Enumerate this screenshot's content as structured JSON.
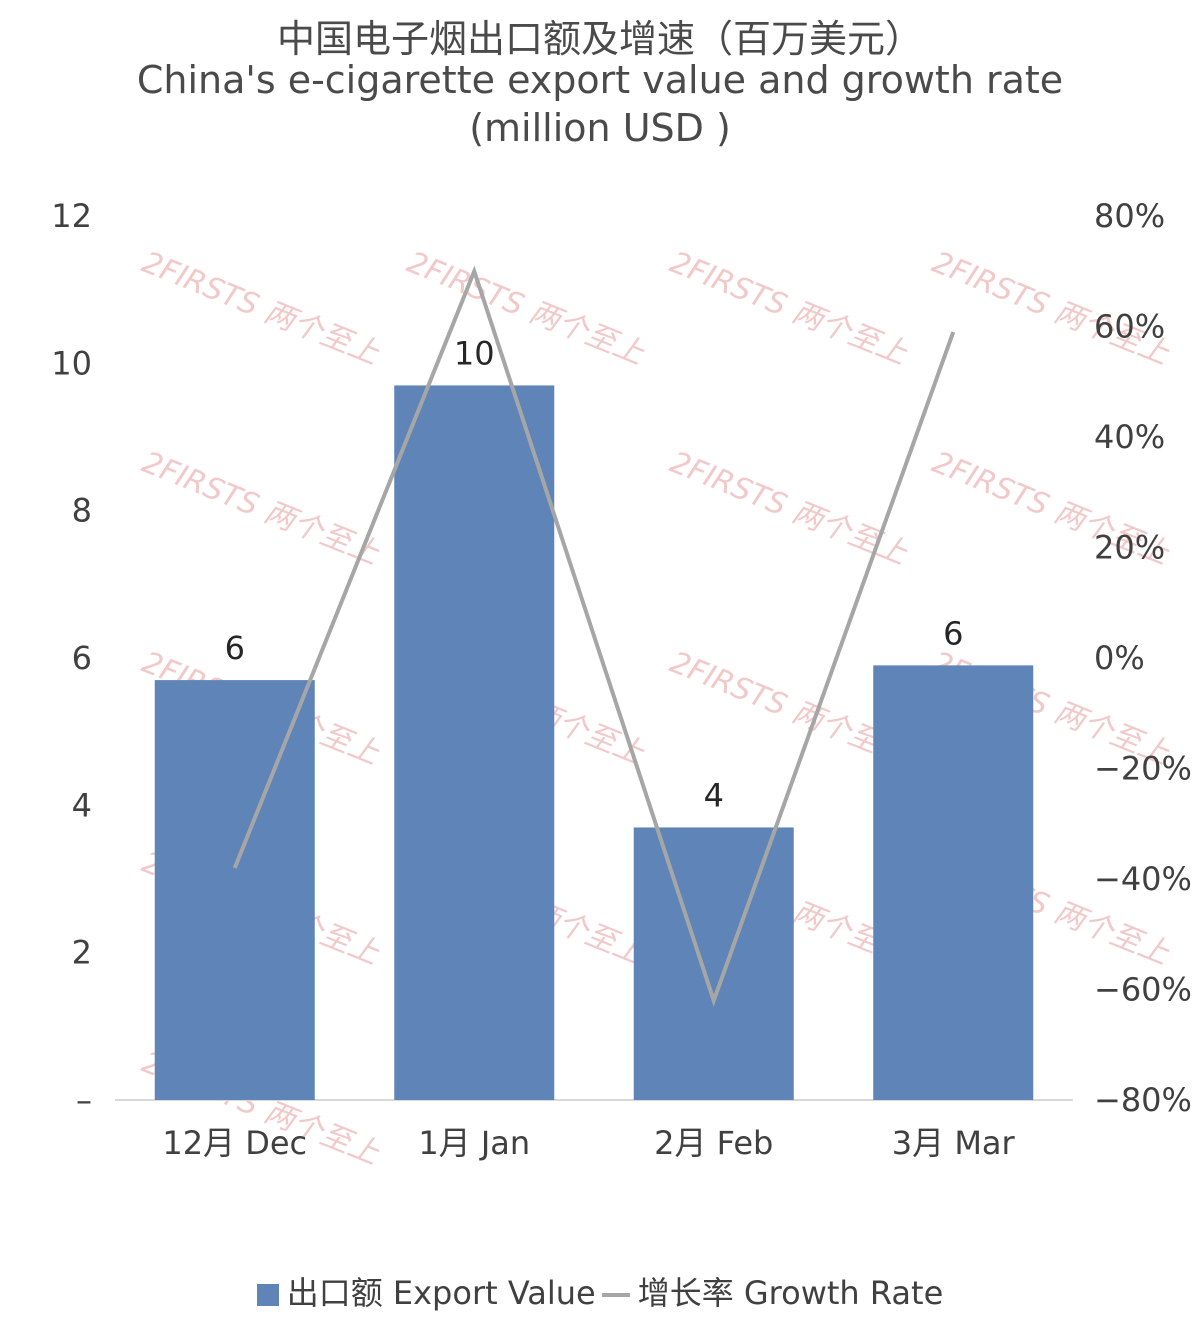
{
  "chart_data": {
    "type": "bar+line",
    "title_cn": "中国电子烟出口额及增速（百万美元）",
    "title_en": "China's e-cigarette export value and growth rate",
    "title_unit": "(million USD )",
    "categories": [
      "12月 Dec",
      "1月 Jan",
      "2月 Feb",
      "3月 Mar"
    ],
    "series": [
      {
        "name": "出口额 Export Value",
        "type": "bar",
        "axis": "left",
        "color": "#5f84b7",
        "values": [
          5.7,
          9.7,
          3.7,
          5.9
        ],
        "data_labels": [
          "6",
          "10",
          "4",
          "6"
        ]
      },
      {
        "name": "增长率 Growth Rate",
        "type": "line",
        "axis": "right",
        "color": "#a6a6a6",
        "values": [
          -0.38,
          0.7,
          -0.62,
          0.59
        ]
      }
    ],
    "left_axis": {
      "min": 0,
      "max": 12,
      "ticks": [
        0,
        2,
        4,
        6,
        8,
        10,
        12
      ],
      "tick_labels": [
        "–",
        "2",
        "4",
        "6",
        "8",
        "10",
        "12"
      ]
    },
    "right_axis": {
      "min": -0.8,
      "max": 0.8,
      "ticks": [
        -0.8,
        -0.6,
        -0.4,
        -0.2,
        0,
        0.2,
        0.4,
        0.6,
        0.8
      ],
      "tick_labels": [
        "−80%",
        "−60%",
        "−40%",
        "−20%",
        "0%",
        "20%",
        "40%",
        "60%",
        "80%"
      ]
    },
    "legend": {
      "position": "bottom",
      "bar_label": "出口额 Export Value",
      "line_label": "增长率 Growth Rate"
    },
    "watermark": "2FIRSTS 两个至上"
  }
}
